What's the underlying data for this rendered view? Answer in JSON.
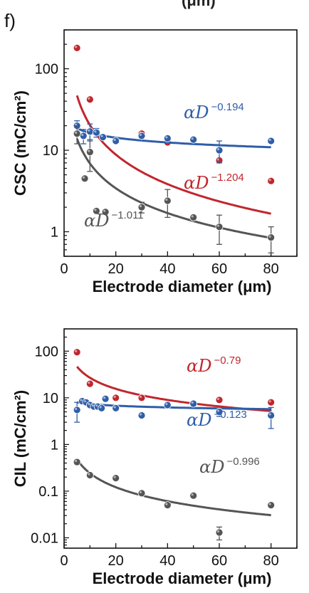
{
  "panel_label": "f)",
  "top_cut_text": "(μm)",
  "colors": {
    "red": "#c0272d",
    "blue": "#2f5ea8",
    "gray": "#555555"
  },
  "chart_data": [
    {
      "type": "scatter",
      "ylabel": "CSC (mC/cm²)",
      "xlabel": "Electrode diameter (μm)",
      "yscale": "log",
      "xlim": [
        0,
        90
      ],
      "ylim": [
        0.5,
        300
      ],
      "x_ticks": [
        "0",
        "20",
        "40",
        "60",
        "80"
      ],
      "y_ticks": [
        "1",
        "10",
        "100"
      ],
      "series": [
        {
          "color": "red",
          "fit": {
            "a": 326,
            "exp": -1.204,
            "label": "αD",
            "label_exp": "−1.204"
          },
          "points": [
            {
              "x": 5,
              "y": 180
            },
            {
              "x": 10,
              "y": 42
            },
            {
              "x": 20,
              "y": 13
            },
            {
              "x": 30,
              "y": 16
            },
            {
              "x": 40,
              "y": 12.5
            },
            {
              "x": 60,
              "y": 7.5
            },
            {
              "x": 80,
              "y": 4.2
            }
          ]
        },
        {
          "color": "blue",
          "fit": {
            "a": 25.5,
            "exp": -0.194,
            "label": "αD",
            "label_exp": "−0.194"
          },
          "points": [
            {
              "x": 5,
              "y": 20,
              "err": 3
            },
            {
              "x": 7.5,
              "y": 15,
              "err": 3
            },
            {
              "x": 10,
              "y": 17,
              "err": 4
            },
            {
              "x": 12.5,
              "y": 16.5,
              "err": 2
            },
            {
              "x": 15,
              "y": 14.5
            },
            {
              "x": 20,
              "y": 13
            },
            {
              "x": 30,
              "y": 15
            },
            {
              "x": 40,
              "y": 14
            },
            {
              "x": 50,
              "y": 13.5
            },
            {
              "x": 60,
              "y": 10,
              "err": 3
            },
            {
              "x": 80,
              "y": 13
            }
          ]
        },
        {
          "color": "gray",
          "fit": {
            "a": 70.6,
            "exp": -1.011,
            "label": "αD",
            "label_exp": "−1.011"
          },
          "points": [
            {
              "x": 5,
              "y": 16,
              "err": 4
            },
            {
              "x": 8,
              "y": 4.5
            },
            {
              "x": 10,
              "y": 9.5,
              "err": 4
            },
            {
              "x": 12.5,
              "y": 1.8
            },
            {
              "x": 16,
              "y": 1.75
            },
            {
              "x": 30,
              "y": 2.0,
              "err": 0.3
            },
            {
              "x": 40,
              "y": 2.4,
              "err": 0.9
            },
            {
              "x": 50,
              "y": 1.5
            },
            {
              "x": 60,
              "y": 1.15,
              "err": 0.45
            },
            {
              "x": 80,
              "y": 0.85,
              "err": 0.3
            }
          ]
        }
      ]
    },
    {
      "type": "scatter",
      "ylabel": "CIL (mC/cm²)",
      "xlabel": "Electrode diameter (μm)",
      "yscale": "log",
      "xlim": [
        0,
        90
      ],
      "ylim": [
        0.006,
        300
      ],
      "x_ticks": [
        "0",
        "20",
        "40",
        "60",
        "80"
      ],
      "y_ticks": [
        "0.01",
        "0.1",
        "1",
        "10",
        "100"
      ],
      "series": [
        {
          "color": "red",
          "fit": {
            "a": 166,
            "exp": -0.79,
            "label": "αD",
            "label_exp": "−0.79"
          },
          "points": [
            {
              "x": 5,
              "y": 95
            },
            {
              "x": 10,
              "y": 20
            },
            {
              "x": 20,
              "y": 10
            },
            {
              "x": 30,
              "y": 10
            },
            {
              "x": 50,
              "y": 7.5
            },
            {
              "x": 60,
              "y": 9
            },
            {
              "x": 80,
              "y": 8
            }
          ]
        },
        {
          "color": "blue",
          "fit": {
            "a": 9.8,
            "exp": -0.123,
            "label": "αD",
            "label_exp": "−0.123"
          },
          "points": [
            {
              "x": 5,
              "y": 5.5,
              "err": 2.5
            },
            {
              "x": 7,
              "y": 8.5
            },
            {
              "x": 8.5,
              "y": 8
            },
            {
              "x": 10,
              "y": 7
            },
            {
              "x": 11.5,
              "y": 6.5
            },
            {
              "x": 13,
              "y": 6.5
            },
            {
              "x": 14.5,
              "y": 6
            },
            {
              "x": 16,
              "y": 9.5
            },
            {
              "x": 20,
              "y": 6
            },
            {
              "x": 30,
              "y": 4.2
            },
            {
              "x": 40,
              "y": 7
            },
            {
              "x": 50,
              "y": 7.5
            },
            {
              "x": 60,
              "y": 5,
              "err": 1
            },
            {
              "x": 80,
              "y": 4.2,
              "err": 2
            }
          ]
        },
        {
          "color": "gray",
          "fit": {
            "a": 2.4,
            "exp": -0.996,
            "label": "αD",
            "label_exp": "−0.996"
          },
          "points": [
            {
              "x": 5,
              "y": 0.42
            },
            {
              "x": 10,
              "y": 0.22
            },
            {
              "x": 20,
              "y": 0.19
            },
            {
              "x": 30,
              "y": 0.09
            },
            {
              "x": 40,
              "y": 0.05
            },
            {
              "x": 50,
              "y": 0.08
            },
            {
              "x": 60,
              "y": 0.013,
              "err": 0.004
            },
            {
              "x": 80,
              "y": 0.05
            }
          ]
        }
      ]
    }
  ]
}
